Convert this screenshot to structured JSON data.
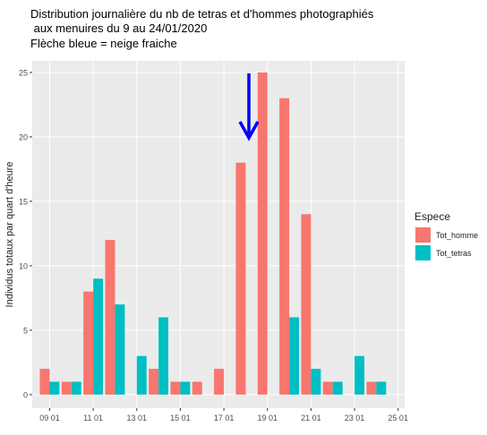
{
  "chart_data": {
    "type": "bar",
    "title": [
      "Distribution journalière du nb de tetras et d'hommes photographiés",
      " aux menuires du 9 au 24/01/2020"
    ],
    "annotation": "Flèche bleue = neige fraiche",
    "y_label": "Individus totaux par quart d'heure",
    "legend_title": "Espece",
    "x": [
      9,
      10,
      11,
      12,
      13,
      14,
      15,
      16,
      17,
      18,
      19,
      20,
      21,
      22,
      23,
      24
    ],
    "series": [
      {
        "name": "Tot_homme",
        "color": "#f8766d",
        "values": [
          2,
          1,
          8,
          12,
          0,
          2,
          1,
          1,
          2,
          18,
          25,
          23,
          14,
          1,
          0,
          1
        ]
      },
      {
        "name": "Tot_tetras",
        "color": "#00bfc4",
        "values": [
          1,
          1,
          9,
          7,
          3,
          6,
          1,
          0,
          0,
          0,
          0,
          6,
          2,
          1,
          3,
          1
        ]
      }
    ],
    "xlim": [
      8.2,
      25.3
    ],
    "xticks": [
      {
        "value": 9,
        "label": "09 01"
      },
      {
        "value": 11,
        "label": "11 01"
      },
      {
        "value": 13,
        "label": "13 01"
      },
      {
        "value": 15,
        "label": "15 01"
      },
      {
        "value": 17,
        "label": "17 01"
      },
      {
        "value": 19,
        "label": "19 01"
      },
      {
        "value": 21,
        "label": "21 01"
      },
      {
        "value": 23,
        "label": "23 01"
      },
      {
        "value": 25,
        "label": "25 01"
      }
    ],
    "ylim": [
      -1.05,
      25.9
    ],
    "yticks": [
      0,
      5,
      10,
      15,
      20,
      25
    ],
    "grid": true,
    "legend": "right"
  }
}
